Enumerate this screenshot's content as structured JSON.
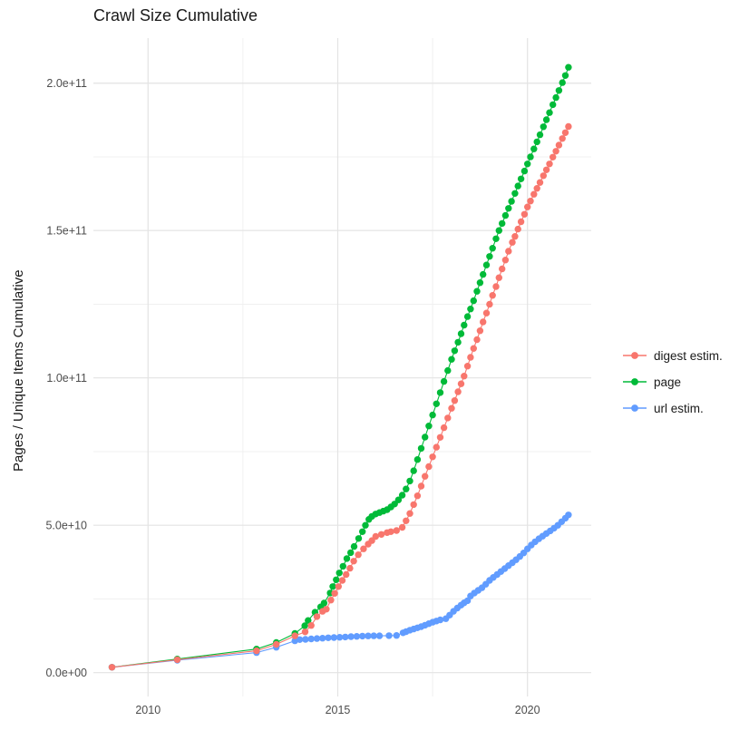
{
  "chart_data": {
    "type": "scatter",
    "title": "Crawl Size Cumulative",
    "xlabel": "",
    "ylabel": "Pages / Unique Items Cumulative",
    "unit_note": "y values stored in billions (1e9 items); y tick labels shown in scientific notation",
    "xlim": [
      2008.56,
      2021.68
    ],
    "ylim_e9": [
      -8.1,
      215.3
    ],
    "grid": true,
    "legend_position": "right-center",
    "background_color": "#FFFFFF",
    "grid_major_color": "#E3E3E3",
    "grid_minor_color": "#F0F0F0",
    "axis_text_color": "#4D4D4D",
    "title_text_color": "#1A1A1A",
    "x_major_ticks": [
      2010,
      2015,
      2020
    ],
    "x_tick_labels": [
      "2010",
      "2015",
      "2020"
    ],
    "x_minor_ticks": [
      2012.5,
      2017.5
    ],
    "y_major_ticks_e9": [
      0,
      50,
      100,
      150,
      200
    ],
    "y_tick_labels": [
      "0.0e+00",
      "5.0e+10",
      "1.0e+11",
      "1.5e+11",
      "2.0e+11"
    ],
    "y_minor_ticks_e9": [
      25,
      75,
      125,
      175
    ],
    "draw_order": [
      "page",
      "url estim.",
      "digest estim."
    ],
    "series": [
      {
        "name": "digest estim.",
        "color": "#F8766D",
        "points_year_value_e9": [
          [
            2009.05,
            1.8
          ],
          [
            2010.77,
            4.4
          ],
          [
            2012.86,
            7.4
          ],
          [
            2013.38,
            9.6
          ],
          [
            2013.87,
            12.5
          ],
          [
            2014.14,
            13.8
          ],
          [
            2014.3,
            16.0
          ],
          [
            2014.45,
            19.0
          ],
          [
            2014.6,
            20.8
          ],
          [
            2014.7,
            21.5
          ],
          [
            2014.82,
            24.6
          ],
          [
            2014.92,
            26.9
          ],
          [
            2015.02,
            29.2
          ],
          [
            2015.12,
            31.3
          ],
          [
            2015.22,
            33.3
          ],
          [
            2015.32,
            35.4
          ],
          [
            2015.42,
            37.8
          ],
          [
            2015.54,
            40.0
          ],
          [
            2015.68,
            42.0
          ],
          [
            2015.8,
            43.6
          ],
          [
            2015.9,
            44.8
          ],
          [
            2016.0,
            46.2
          ],
          [
            2016.15,
            46.9
          ],
          [
            2016.3,
            47.5
          ],
          [
            2016.4,
            47.8
          ],
          [
            2016.55,
            48.2
          ],
          [
            2016.7,
            49.3
          ],
          [
            2016.8,
            51.5
          ],
          [
            2016.9,
            54.0
          ],
          [
            2017.0,
            57.0
          ],
          [
            2017.1,
            60.0
          ],
          [
            2017.2,
            63.3
          ],
          [
            2017.3,
            66.6
          ],
          [
            2017.4,
            69.9
          ],
          [
            2017.5,
            73.2
          ],
          [
            2017.6,
            76.5
          ],
          [
            2017.7,
            79.8
          ],
          [
            2017.8,
            83.1
          ],
          [
            2017.9,
            86.4
          ],
          [
            2018.0,
            89.7
          ],
          [
            2018.08,
            92.3
          ],
          [
            2018.17,
            95.3
          ],
          [
            2018.25,
            98.0
          ],
          [
            2018.33,
            100.6
          ],
          [
            2018.42,
            104.0
          ],
          [
            2018.5,
            107.0
          ],
          [
            2018.58,
            110.0
          ],
          [
            2018.67,
            113.0
          ],
          [
            2018.75,
            116.0
          ],
          [
            2018.83,
            119.0
          ],
          [
            2018.92,
            122.0
          ],
          [
            2019.0,
            125.0
          ],
          [
            2019.08,
            128.0
          ],
          [
            2019.17,
            131.0
          ],
          [
            2019.25,
            134.0
          ],
          [
            2019.33,
            137.0
          ],
          [
            2019.42,
            140.0
          ],
          [
            2019.5,
            143.0
          ],
          [
            2019.6,
            146.0
          ],
          [
            2019.67,
            148.0
          ],
          [
            2019.75,
            150.5
          ],
          [
            2019.83,
            153.0
          ],
          [
            2019.92,
            155.5
          ],
          [
            2020.0,
            158.0
          ],
          [
            2020.08,
            160.0
          ],
          [
            2020.17,
            162.3
          ],
          [
            2020.25,
            164.3
          ],
          [
            2020.33,
            166.3
          ],
          [
            2020.42,
            168.6
          ],
          [
            2020.5,
            170.6
          ],
          [
            2020.58,
            172.6
          ],
          [
            2020.67,
            174.9
          ],
          [
            2020.75,
            176.9
          ],
          [
            2020.83,
            179.0
          ],
          [
            2020.92,
            181.2
          ],
          [
            2021.0,
            183.2
          ],
          [
            2021.08,
            185.3
          ]
        ]
      },
      {
        "name": "page",
        "color": "#00BA38",
        "points_year_value_e9": [
          [
            2009.05,
            1.8
          ],
          [
            2010.77,
            4.6
          ],
          [
            2012.86,
            8.0
          ],
          [
            2013.38,
            10.2
          ],
          [
            2013.87,
            13.3
          ],
          [
            2014.13,
            15.9
          ],
          [
            2014.22,
            17.7
          ],
          [
            2014.4,
            20.5
          ],
          [
            2014.55,
            22.3
          ],
          [
            2014.64,
            23.6
          ],
          [
            2014.8,
            27.0
          ],
          [
            2014.87,
            29.2
          ],
          [
            2014.96,
            31.5
          ],
          [
            2015.04,
            33.8
          ],
          [
            2015.14,
            36.1
          ],
          [
            2015.24,
            38.7
          ],
          [
            2015.34,
            40.7
          ],
          [
            2015.43,
            42.8
          ],
          [
            2015.55,
            45.5
          ],
          [
            2015.65,
            47.8
          ],
          [
            2015.73,
            50.0
          ],
          [
            2015.82,
            52.0
          ],
          [
            2015.9,
            53.0
          ],
          [
            2016.0,
            53.8
          ],
          [
            2016.1,
            54.3
          ],
          [
            2016.2,
            54.8
          ],
          [
            2016.3,
            55.3
          ],
          [
            2016.4,
            56.2
          ],
          [
            2016.5,
            57.2
          ],
          [
            2016.6,
            58.6
          ],
          [
            2016.7,
            60.2
          ],
          [
            2016.8,
            62.3
          ],
          [
            2016.9,
            65.0
          ],
          [
            2017.0,
            68.5
          ],
          [
            2017.1,
            72.3
          ],
          [
            2017.2,
            76.1
          ],
          [
            2017.3,
            79.9
          ],
          [
            2017.4,
            83.7
          ],
          [
            2017.5,
            87.4
          ],
          [
            2017.6,
            91.2
          ],
          [
            2017.7,
            95.0
          ],
          [
            2017.8,
            98.8
          ],
          [
            2017.9,
            102.5
          ],
          [
            2018.0,
            106.3
          ],
          [
            2018.08,
            109.2
          ],
          [
            2018.17,
            112.1
          ],
          [
            2018.25,
            115.0
          ],
          [
            2018.33,
            117.9
          ],
          [
            2018.42,
            120.8
          ],
          [
            2018.5,
            123.4
          ],
          [
            2018.58,
            126.2
          ],
          [
            2018.67,
            129.4
          ],
          [
            2018.75,
            132.3
          ],
          [
            2018.83,
            135.1
          ],
          [
            2018.92,
            138.3
          ],
          [
            2019.0,
            141.2
          ],
          [
            2019.08,
            144.0
          ],
          [
            2019.17,
            147.2
          ],
          [
            2019.25,
            150.0
          ],
          [
            2019.33,
            152.4
          ],
          [
            2019.42,
            155.1
          ],
          [
            2019.5,
            157.5
          ],
          [
            2019.58,
            159.9
          ],
          [
            2019.67,
            162.6
          ],
          [
            2019.75,
            165.1
          ],
          [
            2019.83,
            167.5
          ],
          [
            2019.92,
            170.2
          ],
          [
            2020.0,
            172.6
          ],
          [
            2020.08,
            175.0
          ],
          [
            2020.17,
            177.7
          ],
          [
            2020.25,
            180.1
          ],
          [
            2020.33,
            182.5
          ],
          [
            2020.42,
            185.2
          ],
          [
            2020.5,
            187.6
          ],
          [
            2020.58,
            190.0
          ],
          [
            2020.67,
            192.7
          ],
          [
            2020.75,
            195.1
          ],
          [
            2020.83,
            197.5
          ],
          [
            2020.92,
            200.2
          ],
          [
            2021.0,
            202.6
          ],
          [
            2021.08,
            205.4
          ]
        ]
      },
      {
        "name": "url estim.",
        "color": "#619CFF",
        "points_year_value_e9": [
          [
            2009.05,
            1.8
          ],
          [
            2010.77,
            4.2
          ],
          [
            2012.86,
            6.8
          ],
          [
            2013.38,
            8.6
          ],
          [
            2013.87,
            10.8
          ],
          [
            2014.0,
            11.2
          ],
          [
            2014.15,
            11.3
          ],
          [
            2014.3,
            11.45
          ],
          [
            2014.45,
            11.55
          ],
          [
            2014.6,
            11.7
          ],
          [
            2014.75,
            11.8
          ],
          [
            2014.9,
            11.9
          ],
          [
            2015.05,
            12.0
          ],
          [
            2015.2,
            12.1
          ],
          [
            2015.35,
            12.2
          ],
          [
            2015.5,
            12.3
          ],
          [
            2015.65,
            12.4
          ],
          [
            2015.8,
            12.45
          ],
          [
            2015.95,
            12.5
          ],
          [
            2016.1,
            12.5
          ],
          [
            2016.35,
            12.55
          ],
          [
            2016.55,
            12.6
          ],
          [
            2016.72,
            13.5
          ],
          [
            2016.8,
            13.9
          ],
          [
            2016.9,
            14.4
          ],
          [
            2017.0,
            14.8
          ],
          [
            2017.1,
            15.2
          ],
          [
            2017.2,
            15.6
          ],
          [
            2017.3,
            16.1
          ],
          [
            2017.4,
            16.6
          ],
          [
            2017.5,
            17.1
          ],
          [
            2017.6,
            17.5
          ],
          [
            2017.7,
            17.9
          ],
          [
            2017.85,
            18.3
          ],
          [
            2017.95,
            19.5
          ],
          [
            2018.05,
            20.8
          ],
          [
            2018.15,
            21.9
          ],
          [
            2018.25,
            22.9
          ],
          [
            2018.33,
            23.7
          ],
          [
            2018.42,
            24.4
          ],
          [
            2018.5,
            26.0
          ],
          [
            2018.6,
            27.0
          ],
          [
            2018.7,
            27.9
          ],
          [
            2018.8,
            28.8
          ],
          [
            2018.9,
            30.0
          ],
          [
            2019.0,
            31.3
          ],
          [
            2019.1,
            32.3
          ],
          [
            2019.2,
            33.3
          ],
          [
            2019.3,
            34.3
          ],
          [
            2019.4,
            35.3
          ],
          [
            2019.5,
            36.3
          ],
          [
            2019.6,
            37.3
          ],
          [
            2019.7,
            38.3
          ],
          [
            2019.8,
            39.4
          ],
          [
            2019.9,
            40.6
          ],
          [
            2020.0,
            42.0
          ],
          [
            2020.1,
            43.3
          ],
          [
            2020.2,
            44.4
          ],
          [
            2020.3,
            45.4
          ],
          [
            2020.4,
            46.3
          ],
          [
            2020.5,
            47.2
          ],
          [
            2020.6,
            48.1
          ],
          [
            2020.7,
            49.0
          ],
          [
            2020.8,
            50.0
          ],
          [
            2020.9,
            51.2
          ],
          [
            2021.0,
            52.4
          ],
          [
            2021.08,
            53.5
          ]
        ]
      }
    ]
  },
  "legend": {
    "items": [
      {
        "label": "digest estim.",
        "color": "#F8766D"
      },
      {
        "label": "page",
        "color": "#00BA38"
      },
      {
        "label": "url estim.",
        "color": "#619CFF"
      }
    ]
  }
}
